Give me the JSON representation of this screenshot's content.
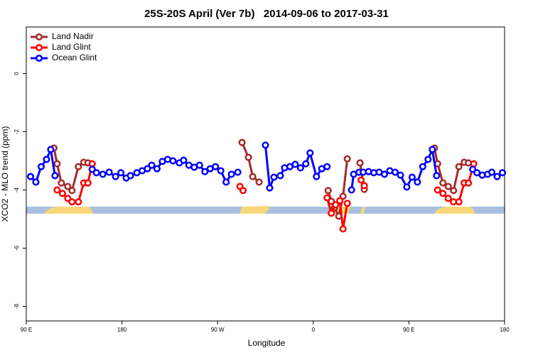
{
  "chart_data": {
    "type": "line",
    "title": "25S-20S April (Ver 7b)   2014-09-06 to 2017-03-31",
    "xlabel": "Longitude",
    "ylabel": "XCO2 - MLO trend (ppm)",
    "xlim": [
      90,
      540
    ],
    "ylim": [
      -8.5,
      1.6
    ],
    "xticks": [
      {
        "value": 90,
        "label": "90 E"
      },
      180,
      {
        "value": 270,
        "label": "90 W"
      },
      {
        "value": 360,
        "label": "0"
      },
      {
        "value": 450,
        "label": "90 E"
      },
      {
        "value": 540,
        "label": "180"
      }
    ],
    "yticks": [
      0,
      -2,
      -4,
      -6,
      -8
    ],
    "legend": "top-left",
    "series": [
      {
        "name": "Land Nadir",
        "color": "#a52a2a",
        "x": [
          116,
          119,
          123,
          129,
          133,
          139,
          144,
          148,
          null,
          293,
          299,
          303,
          309,
          null,
          374,
          377,
          380,
          384,
          388,
          392,
          null,
          404,
          408,
          null,
          474,
          477,
          482,
          487,
          492,
          497,
          502,
          506
        ],
        "values": [
          -2.56,
          -3.1,
          -3.76,
          -3.88,
          -4.02,
          -3.2,
          -3.05,
          -3.07,
          null,
          -2.37,
          -2.88,
          -3.54,
          -3.73,
          null,
          -4.02,
          -4.39,
          -4.61,
          -4.9,
          -4.22,
          -2.93,
          null,
          -3.07,
          -3.98,
          null,
          -2.56,
          -3.1,
          -3.76,
          -3.88,
          -4.02,
          -3.2,
          -3.05,
          -3.07
        ]
      },
      {
        "name": "Land Glint",
        "color": "#ff0000",
        "x": [
          119,
          124,
          129,
          133,
          139,
          144,
          148,
          152,
          null,
          291,
          294,
          null,
          373,
          377,
          381,
          385,
          388,
          392,
          null,
          405,
          408,
          null,
          477,
          482,
          487,
          492,
          497,
          502,
          506,
          511
        ],
        "values": [
          -4.0,
          -4.12,
          -4.29,
          -4.41,
          -4.41,
          -3.76,
          -3.76,
          -3.1,
          null,
          -3.88,
          -4.02,
          null,
          -4.27,
          -4.8,
          -4.51,
          -4.37,
          -5.34,
          -4.46,
          null,
          -3.66,
          -3.85,
          null,
          -4.0,
          -4.12,
          -4.29,
          -4.41,
          -4.41,
          -3.76,
          -3.76,
          -3.1
        ]
      },
      {
        "name": "Ocean Glint",
        "color": "#0000ff",
        "x": [
          94,
          99,
          104,
          109,
          113,
          117,
          null,
          152,
          156,
          162,
          168,
          174,
          179,
          184,
          188,
          194,
          199,
          204,
          208,
          213,
          218,
          223,
          228,
          234,
          238,
          243,
          248,
          253,
          258,
          263,
          268,
          273,
          278,
          283,
          289,
          null,
          315,
          319,
          323,
          329,
          333,
          338,
          343,
          348,
          353,
          357,
          363,
          368,
          373,
          null,
          396,
          398,
          403,
          407,
          412,
          417,
          422,
          427,
          432,
          437,
          442,
          448,
          453,
          458,
          463,
          468,
          472,
          476,
          null,
          510,
          514,
          519,
          524,
          528,
          533,
          538
        ],
        "values": [
          -3.54,
          -3.73,
          -3.2,
          -2.95,
          -2.61,
          -3.51,
          null,
          -3.29,
          -3.41,
          -3.46,
          -3.39,
          -3.54,
          -3.41,
          -3.59,
          -3.51,
          -3.41,
          -3.34,
          -3.27,
          -3.15,
          -3.27,
          -3.02,
          -2.95,
          -3.0,
          -3.07,
          -2.98,
          -3.15,
          -3.22,
          -3.15,
          -3.37,
          -3.27,
          -3.2,
          -3.34,
          -3.73,
          -3.46,
          -3.39,
          null,
          -2.46,
          -3.93,
          -3.56,
          -3.51,
          -3.24,
          -3.2,
          -3.12,
          -3.24,
          -3.1,
          -2.73,
          -3.54,
          -3.27,
          -3.2,
          null,
          -4.0,
          -3.46,
          -3.39,
          -3.39,
          -3.37,
          -3.41,
          -3.39,
          -3.46,
          -3.34,
          -3.39,
          -3.49,
          -3.9,
          -3.56,
          -3.73,
          -3.2,
          -2.95,
          -2.61,
          -3.51,
          null,
          -3.29,
          -3.41,
          -3.49,
          -3.46,
          -3.39,
          -3.54,
          -3.41
        ]
      }
    ]
  }
}
